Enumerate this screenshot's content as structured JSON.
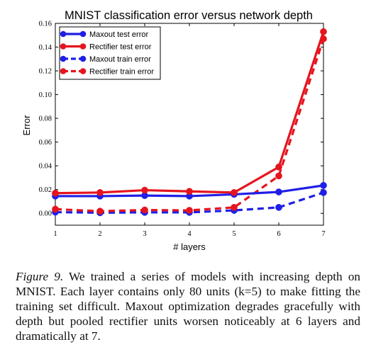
{
  "chart_data": {
    "type": "line",
    "title": "MNIST classification error versus network depth",
    "xlabel": "# layers",
    "ylabel": "Error",
    "x": [
      1,
      2,
      3,
      4,
      5,
      6,
      7
    ],
    "xlim": [
      1,
      7
    ],
    "ylim": [
      -0.01,
      0.16
    ],
    "yticks": [
      "0.00",
      "0.02",
      "0.04",
      "0.06",
      "0.08",
      "0.10",
      "0.12",
      "0.14",
      "0.16"
    ],
    "xticks": [
      "1",
      "2",
      "3",
      "4",
      "5",
      "6",
      "7"
    ],
    "grid": false,
    "legend_position": "top-left",
    "series": [
      {
        "name": "Maxout test error",
        "color": "#1f1fe6",
        "dash": "solid",
        "values": [
          0.0145,
          0.0145,
          0.015,
          0.0145,
          0.016,
          0.018,
          0.0235
        ]
      },
      {
        "name": "Rectifier test error",
        "color": "#e6141e",
        "dash": "solid",
        "values": [
          0.017,
          0.0175,
          0.0195,
          0.0185,
          0.0175,
          0.039,
          0.153
        ]
      },
      {
        "name": "Maxout train error",
        "color": "#1f1fe6",
        "dash": "dashed",
        "values": [
          0.001,
          0.0005,
          0.0008,
          0.0008,
          0.0025,
          0.005,
          0.0175
        ]
      },
      {
        "name": "Rectifier train error",
        "color": "#e6141e",
        "dash": "dashed",
        "values": [
          0.0035,
          0.0018,
          0.0028,
          0.0025,
          0.005,
          0.0315,
          0.147
        ]
      }
    ]
  },
  "caption": {
    "label": "Figure 9.",
    "text": " We trained a series of models with increasing depth on MNIST. Each layer contains only 80 units (k=5) to make fitting the training set difficult. Maxout optimization degrades gracefully with depth but pooled rectifier units worsen noticeably at 6 layers and dramatically at 7."
  }
}
